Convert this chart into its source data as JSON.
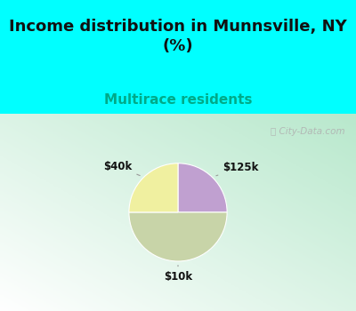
{
  "title": "Income distribution in Munnsville, NY\n(%)",
  "subtitle": "Multirace residents",
  "title_fontsize": 13,
  "subtitle_fontsize": 11,
  "subtitle_color": "#00aa88",
  "title_color": "#111111",
  "background_top": "#00ffff",
  "chart_bg_color": "#c8eedd",
  "slices": [
    {
      "label": "$125k",
      "value": 25,
      "color": "#c0a0d0"
    },
    {
      "label": "$10k",
      "value": 50,
      "color": "#c8d4a8"
    },
    {
      "label": "$40k",
      "value": 25,
      "color": "#f0f0a0"
    }
  ],
  "watermark": "City-Data.com",
  "annots": [
    {
      "label": "$125k",
      "wedge_mid_deg": 45,
      "r_label": 0.78,
      "ha": "left"
    },
    {
      "label": "$10k",
      "wedge_mid_deg": 270,
      "r_label": 0.85,
      "ha": "center"
    },
    {
      "label": "$40k",
      "wedge_mid_deg": 135,
      "r_label": 0.82,
      "ha": "right"
    }
  ]
}
